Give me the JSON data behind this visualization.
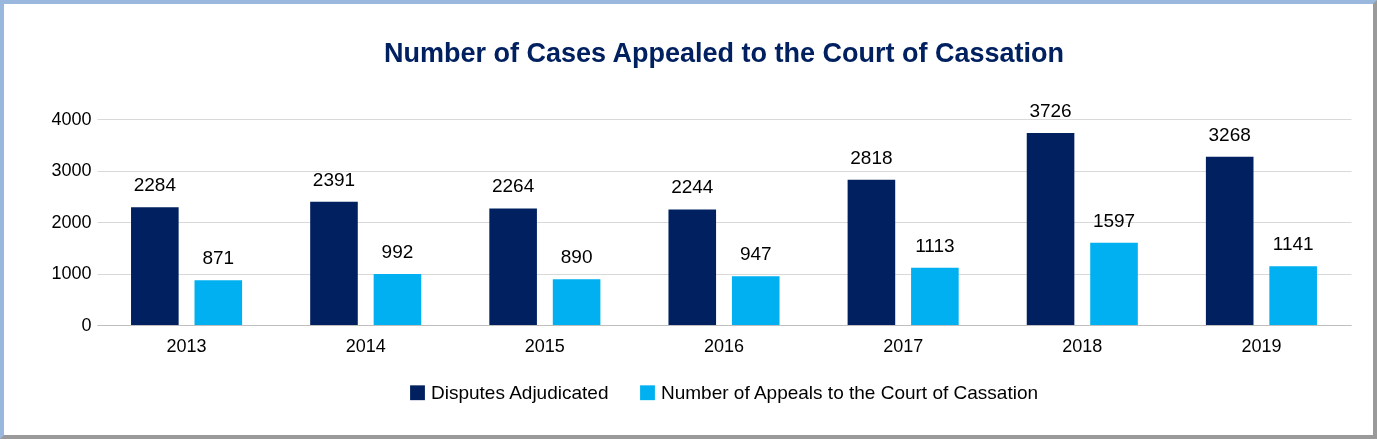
{
  "chart_data": {
    "type": "bar",
    "title": "Number of Cases Appealed to the Court of Cassation",
    "categories": [
      "2013",
      "2014",
      "2015",
      "2016",
      "2017",
      "2018",
      "2019"
    ],
    "series": [
      {
        "name": "Disputes Adjudicated",
        "color": "#002060",
        "values": [
          2284,
          2391,
          2264,
          2244,
          2818,
          3726,
          3268
        ]
      },
      {
        "name": "Number of Appeals to the Court of Cassation",
        "color": "#00b0f0",
        "values": [
          871,
          992,
          890,
          947,
          1113,
          1597,
          1141
        ]
      }
    ],
    "ylim": [
      0,
      4000
    ],
    "yticks": [
      0,
      1000,
      2000,
      3000,
      4000
    ],
    "grid": "y",
    "legend": "bottom",
    "data_labels": true
  }
}
